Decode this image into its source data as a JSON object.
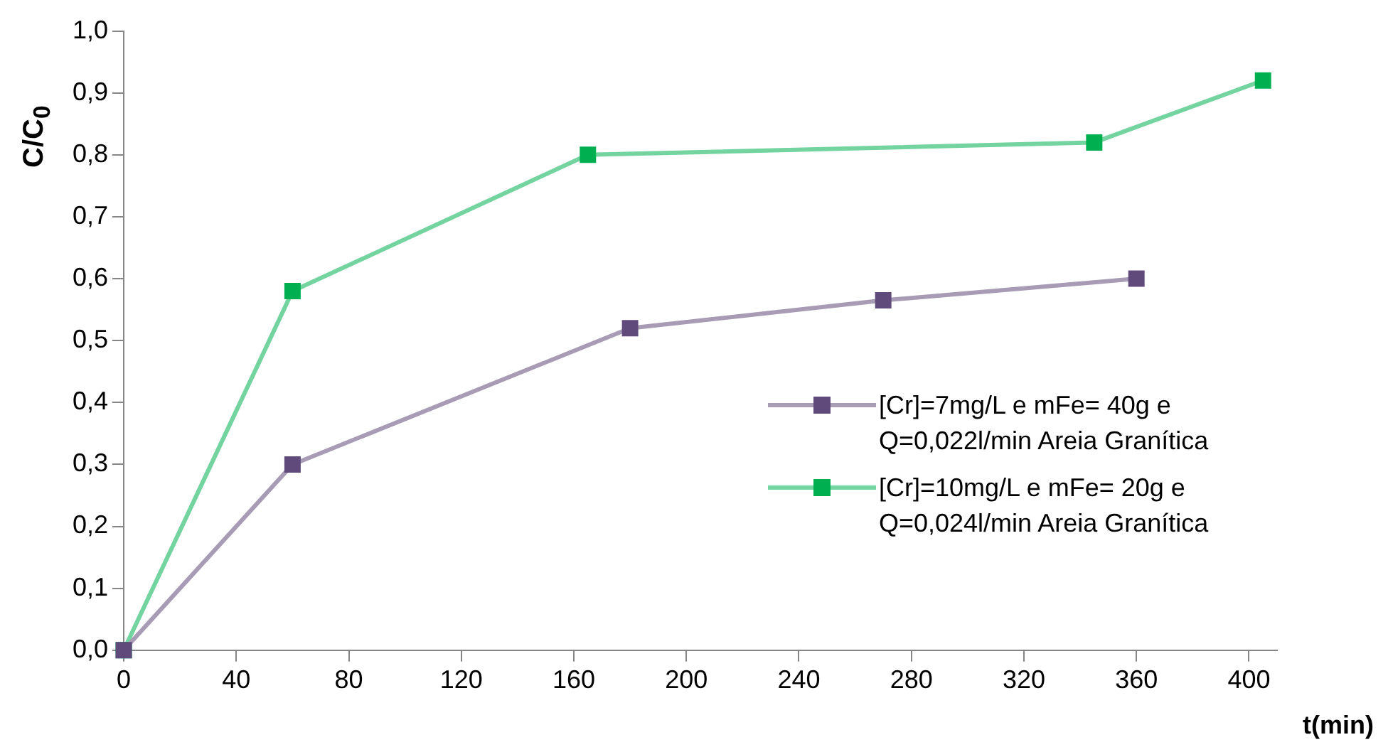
{
  "chart_data": {
    "type": "line",
    "xlabel": "t(min)",
    "ylabel": "C/C$_{0}$",
    "xlim": [
      0,
      410
    ],
    "xticks": [
      0,
      40,
      80,
      120,
      160,
      200,
      240,
      280,
      320,
      360,
      400
    ],
    "ylim": [
      0,
      1
    ],
    "yticks": [
      {
        "value": 0,
        "label": "0,0"
      },
      {
        "value": 0.1,
        "label": "0,1"
      },
      {
        "value": 0.2,
        "label": "0,2"
      },
      {
        "value": 0.3,
        "label": "0,3"
      },
      {
        "value": 0.4,
        "label": "0,4"
      },
      {
        "value": 0.5,
        "label": "0,5"
      },
      {
        "value": 0.6,
        "label": "0,6"
      },
      {
        "value": 0.7,
        "label": "0,7"
      },
      {
        "value": 0.8,
        "label": "0,8"
      },
      {
        "value": 0.9,
        "label": "0,9"
      },
      {
        "value": 1,
        "label": "1,0"
      }
    ],
    "grid": false,
    "legend": "right",
    "marker": "square",
    "line_style": "solid",
    "series": [
      {
        "name": "[Cr]=7mg/L e mFe= 40g e Q=0,022l/min Areia Granítica",
        "color": "#604a7b",
        "x": [
          0,
          60,
          180,
          270,
          360
        ],
        "values": [
          0,
          0.3,
          0.52,
          0.565,
          0.6
        ]
      },
      {
        "name": "[Cr]=10mg/L e mFe= 20g e Q=0,024l/min Areia Granítica",
        "color": "#00b050",
        "x": [
          0,
          60,
          165,
          345,
          405
        ],
        "values": [
          0,
          0.58,
          0.8,
          0.82,
          0.92
        ]
      }
    ]
  }
}
